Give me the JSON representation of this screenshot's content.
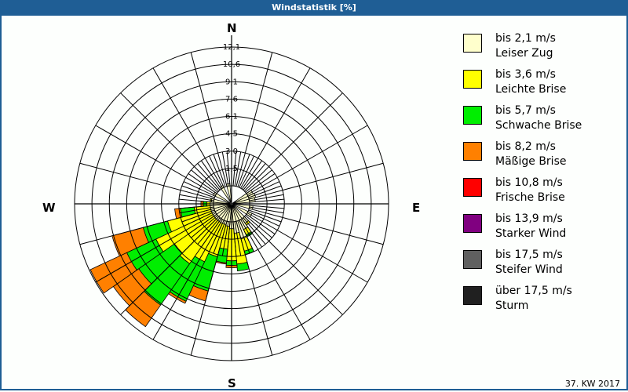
{
  "window": {
    "title": "Windstatistik [%]"
  },
  "compass": {
    "n": "N",
    "e": "E",
    "s": "S",
    "w": "W"
  },
  "footer": {
    "week": "37. KW 2017"
  },
  "legend": {
    "items": [
      {
        "range": "bis 2,1 m/s",
        "name": "Leiser Zug",
        "color": "#ffffcc"
      },
      {
        "range": "bis 3,6 m/s",
        "name": "Leichte Brise",
        "color": "#ffff00"
      },
      {
        "range": "bis 5,7 m/s",
        "name": "Schwache Brise",
        "color": "#00ee00"
      },
      {
        "range": "bis 8,2 m/s",
        "name": "Mäßige Brise",
        "color": "#ff8000"
      },
      {
        "range": "bis 10,8 m/s",
        "name": "Frische Brise",
        "color": "#ff0000"
      },
      {
        "range": "bis 13,9 m/s",
        "name": "Starker Wind",
        "color": "#800080"
      },
      {
        "range": "bis 17,5 m/s",
        "name": "Steifer Wind",
        "color": "#606060"
      },
      {
        "range": "über 17,5 m/s",
        "name": "Sturm",
        "color": "#202020"
      }
    ]
  },
  "chart_data": {
    "type": "windrose",
    "title": "Windstatistik [%]",
    "subtitle": "37. KW 2017",
    "radial_unit": "%",
    "ring_labels": [
      "1,5",
      "3,0",
      "4,5",
      "6,1",
      "7,6",
      "9,1",
      "10,6",
      "12,1"
    ],
    "rmax": 12.1,
    "sector_width_deg": 10,
    "speed_classes": [
      "bis 2,1 m/s",
      "bis 3,6 m/s",
      "bis 5,7 m/s",
      "bis 8,2 m/s",
      "bis 10,8 m/s",
      "bis 13,9 m/s",
      "bis 17,5 m/s",
      "über 17,5 m/s"
    ],
    "sectors": [
      {
        "dir": 60,
        "cum": [
          0.5
        ]
      },
      {
        "dir": 70,
        "cum": [
          0.6
        ]
      },
      {
        "dir": 80,
        "cum": [
          0.5
        ]
      },
      {
        "dir": 100,
        "cum": [
          0.3
        ]
      },
      {
        "dir": 120,
        "cum": [
          0.4
        ]
      },
      {
        "dir": 140,
        "cum": [
          0.5,
          0.7
        ]
      },
      {
        "dir": 150,
        "cum": [
          0.9,
          1.4,
          1.6
        ]
      },
      {
        "dir": 160,
        "cum": [
          1.6,
          2.7,
          3.0
        ]
      },
      {
        "dir": 170,
        "cum": [
          1.0,
          3.7,
          4.3
        ]
      },
      {
        "dir": 180,
        "cum": [
          0.6,
          3.4,
          3.8,
          4.0
        ]
      },
      {
        "dir": 190,
        "cum": [
          0.4,
          2.4,
          3.6,
          3.7
        ]
      },
      {
        "dir": 200,
        "cum": [
          0.3,
          3.2,
          6.3,
          7.2
        ]
      },
      {
        "dir": 210,
        "cum": [
          0.3,
          4.0,
          7.8,
          8.0
        ]
      },
      {
        "dir": 220,
        "cum": [
          0.3,
          4.8,
          9.2,
          11.5
        ]
      },
      {
        "dir": 230,
        "cum": [
          0.3,
          4.5,
          8.3,
          11.0
        ]
      },
      {
        "dir": 240,
        "cum": [
          0.3,
          5.7,
          8.5,
          12.0
        ]
      },
      {
        "dir": 250,
        "cum": [
          0.3,
          4.2,
          6.4,
          9.2
        ]
      },
      {
        "dir": 260,
        "cum": [
          0.3,
          1.7,
          2.9,
          3.4
        ]
      },
      {
        "dir": 270,
        "cum": [
          0.3,
          0.6,
          0.9,
          1.1
        ]
      },
      {
        "dir": 280,
        "cum": [
          0.2,
          0.3
        ]
      },
      {
        "dir": 300,
        "cum": [
          0.2
        ]
      },
      {
        "dir": 330,
        "cum": [
          0.2
        ]
      },
      {
        "dir": 350,
        "cum": [
          0.2
        ]
      }
    ],
    "grid": true,
    "legend_position": "right"
  }
}
